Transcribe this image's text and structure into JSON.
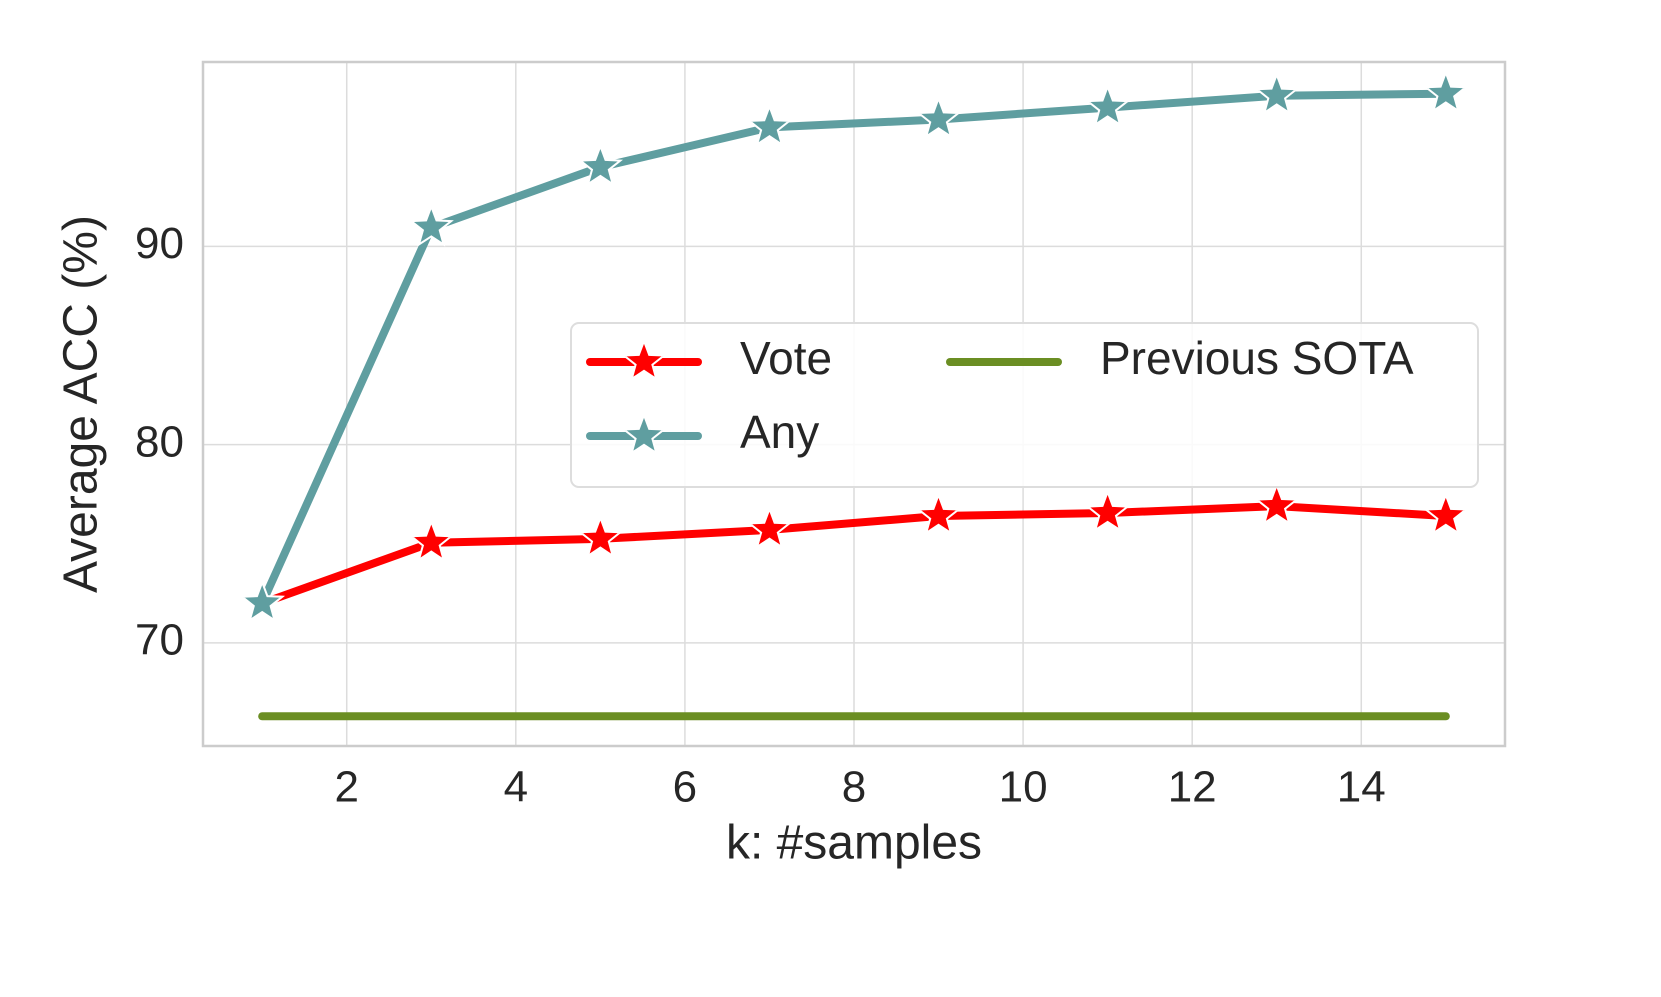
{
  "chart_data": {
    "type": "line",
    "x_label": "k: #samples",
    "y_label": "Average ACC (%)",
    "x": [
      1,
      3,
      5,
      7,
      9,
      11,
      13,
      15
    ],
    "series": [
      {
        "name": "Vote",
        "color": "#ff0000",
        "marker": "star",
        "values": [
          72.0,
          75.05,
          75.25,
          75.7,
          76.4,
          76.55,
          76.9,
          76.4
        ]
      },
      {
        "name": "Any",
        "color": "#5f9ea0",
        "marker": "star",
        "values": [
          72.0,
          90.95,
          94.0,
          96.0,
          96.4,
          97.0,
          97.6,
          97.7
        ]
      },
      {
        "name": "Previous SOTA",
        "color": "#6b8e23",
        "x": [
          1,
          15
        ],
        "values": [
          66.3,
          66.3
        ]
      }
    ],
    "xlim": [
      0.3,
      15.7
    ],
    "ylim": [
      64.8,
      99.3
    ],
    "xticks": [
      2,
      4,
      6,
      8,
      10,
      12,
      14
    ],
    "yticks": [
      70,
      80,
      90
    ],
    "grid": true,
    "legend": "center right"
  }
}
